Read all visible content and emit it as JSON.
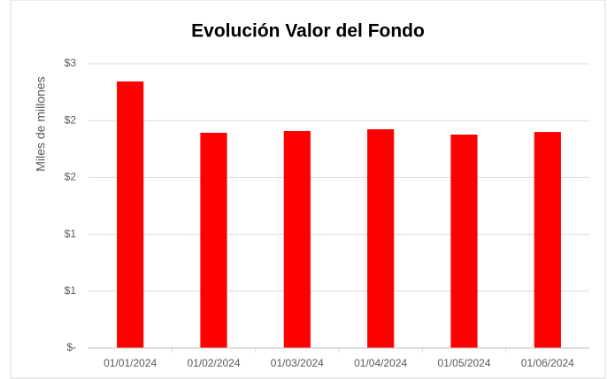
{
  "chart_data": {
    "type": "bar",
    "title": "Evolución Valor del Fondo",
    "y_label": "Miles de millones",
    "categories": [
      "01/01/2024",
      "01/02/2024",
      "01/03/2024",
      "01/04/2024",
      "01/05/2024",
      "01/06/2024"
    ],
    "values": [
      2.344,
      1.893,
      1.908,
      1.924,
      1.877,
      1.9
    ],
    "color": "#ff0000",
    "ylim": [
      0,
      2.5
    ],
    "yticks": [
      {
        "value": 0,
        "label": "$-"
      },
      {
        "value": 0.5,
        "label": "$1"
      },
      {
        "value": 1,
        "label": "$1"
      },
      {
        "value": 1.5,
        "label": "$2"
      },
      {
        "value": 2,
        "label": "$2"
      },
      {
        "value": 2.5,
        "label": "$3"
      }
    ],
    "grid": true
  }
}
